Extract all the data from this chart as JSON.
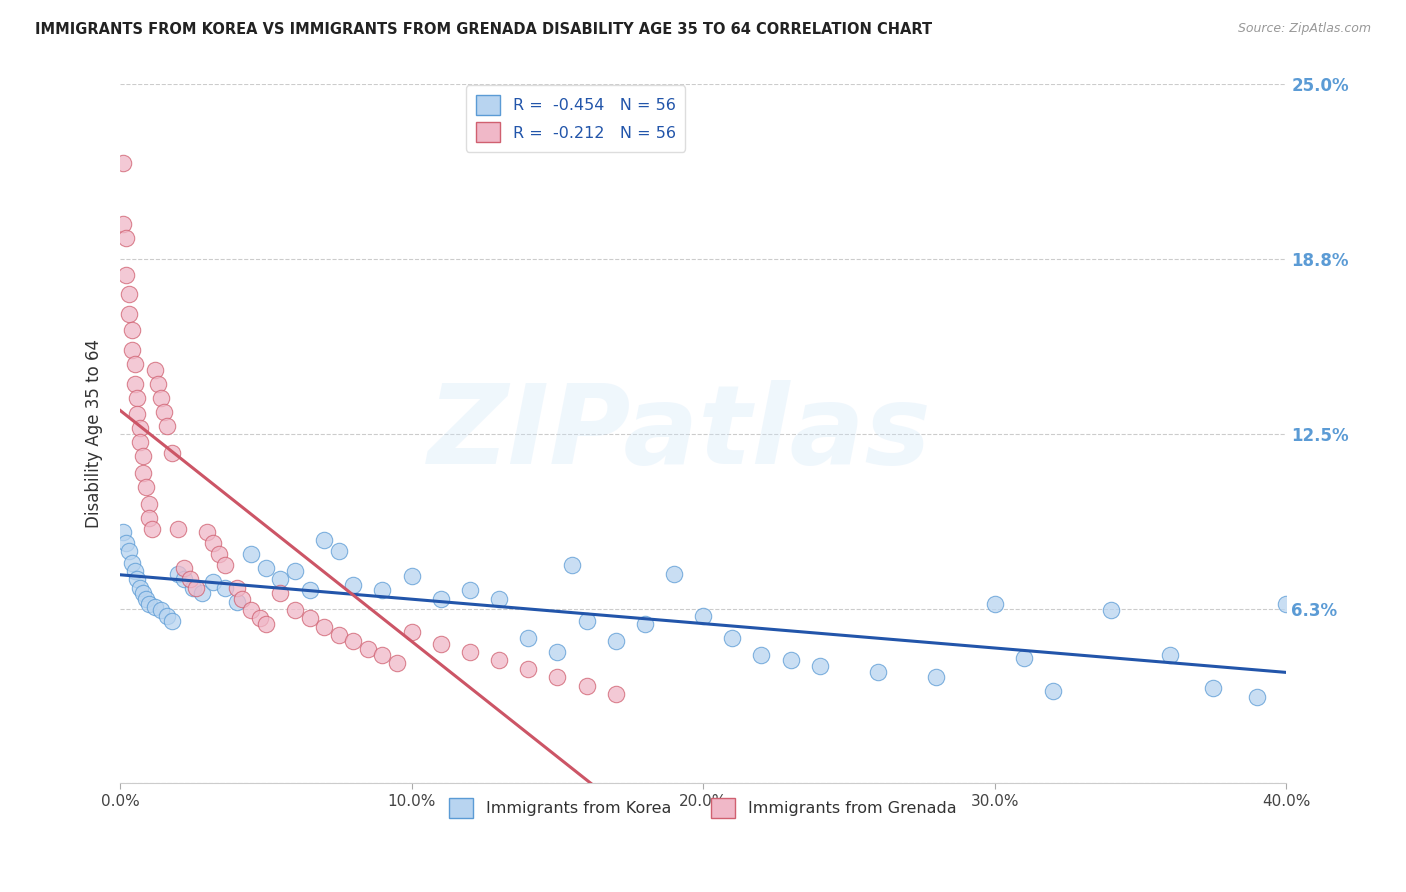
{
  "title": "IMMIGRANTS FROM KOREA VS IMMIGRANTS FROM GRENADA DISABILITY AGE 35 TO 64 CORRELATION CHART",
  "source": "Source: ZipAtlas.com",
  "ylabel": "Disability Age 35 to 64",
  "legend_korea": "Immigrants from Korea",
  "legend_grenada": "Immigrants from Grenada",
  "korea_R": "-0.454",
  "korea_N": "56",
  "grenada_R": "-0.212",
  "grenada_N": "56",
  "xmin": 0.0,
  "xmax": 0.4,
  "ymin": 0.0,
  "ymax": 0.25,
  "yticks": [
    0.0,
    0.0625,
    0.125,
    0.1875,
    0.25
  ],
  "ytick_labels": [
    "",
    "6.3%",
    "12.5%",
    "18.8%",
    "25.0%"
  ],
  "xticks": [
    0.0,
    0.1,
    0.2,
    0.3,
    0.4
  ],
  "xtick_labels": [
    "0.0%",
    "10.0%",
    "20.0%",
    "30.0%",
    "40.0%"
  ],
  "korea_dot_color": "#b8d4f0",
  "grenada_dot_color": "#f0b8c8",
  "korea_edge_color": "#5b9bd5",
  "grenada_edge_color": "#d06070",
  "korea_line_color": "#2255aa",
  "grenada_line_color": "#cc5566",
  "watermark_text": "ZIPatlas",
  "background_color": "#ffffff",
  "grid_color": "#cccccc",
  "right_tick_color": "#5b9bd5",
  "korea_x": [
    0.001,
    0.002,
    0.003,
    0.004,
    0.005,
    0.006,
    0.007,
    0.008,
    0.009,
    0.01,
    0.012,
    0.014,
    0.016,
    0.018,
    0.02,
    0.022,
    0.025,
    0.028,
    0.032,
    0.036,
    0.04,
    0.045,
    0.05,
    0.055,
    0.06,
    0.065,
    0.07,
    0.075,
    0.08,
    0.09,
    0.1,
    0.11,
    0.12,
    0.13,
    0.14,
    0.15,
    0.155,
    0.16,
    0.17,
    0.18,
    0.19,
    0.2,
    0.21,
    0.22,
    0.23,
    0.24,
    0.26,
    0.28,
    0.3,
    0.31,
    0.32,
    0.34,
    0.36,
    0.375,
    0.39,
    0.4
  ],
  "korea_y": [
    0.09,
    0.086,
    0.083,
    0.079,
    0.076,
    0.073,
    0.07,
    0.068,
    0.066,
    0.064,
    0.063,
    0.062,
    0.06,
    0.058,
    0.075,
    0.073,
    0.07,
    0.068,
    0.072,
    0.07,
    0.065,
    0.082,
    0.077,
    0.073,
    0.076,
    0.069,
    0.087,
    0.083,
    0.071,
    0.069,
    0.074,
    0.066,
    0.069,
    0.066,
    0.052,
    0.047,
    0.078,
    0.058,
    0.051,
    0.057,
    0.075,
    0.06,
    0.052,
    0.046,
    0.044,
    0.042,
    0.04,
    0.038,
    0.064,
    0.045,
    0.033,
    0.062,
    0.046,
    0.034,
    0.031,
    0.064
  ],
  "grenada_x": [
    0.001,
    0.001,
    0.002,
    0.002,
    0.003,
    0.003,
    0.004,
    0.004,
    0.005,
    0.005,
    0.006,
    0.006,
    0.007,
    0.007,
    0.008,
    0.008,
    0.009,
    0.01,
    0.01,
    0.011,
    0.012,
    0.013,
    0.014,
    0.015,
    0.016,
    0.018,
    0.02,
    0.022,
    0.024,
    0.026,
    0.03,
    0.032,
    0.034,
    0.036,
    0.04,
    0.042,
    0.045,
    0.048,
    0.05,
    0.055,
    0.06,
    0.065,
    0.07,
    0.075,
    0.08,
    0.085,
    0.09,
    0.095,
    0.1,
    0.11,
    0.12,
    0.13,
    0.14,
    0.15,
    0.16,
    0.17
  ],
  "grenada_y": [
    0.222,
    0.2,
    0.195,
    0.182,
    0.175,
    0.168,
    0.162,
    0.155,
    0.15,
    0.143,
    0.138,
    0.132,
    0.127,
    0.122,
    0.117,
    0.111,
    0.106,
    0.1,
    0.095,
    0.091,
    0.148,
    0.143,
    0.138,
    0.133,
    0.128,
    0.118,
    0.091,
    0.077,
    0.073,
    0.07,
    0.09,
    0.086,
    0.082,
    0.078,
    0.07,
    0.066,
    0.062,
    0.059,
    0.057,
    0.068,
    0.062,
    0.059,
    0.056,
    0.053,
    0.051,
    0.048,
    0.046,
    0.043,
    0.054,
    0.05,
    0.047,
    0.044,
    0.041,
    0.038,
    0.035,
    0.032
  ]
}
